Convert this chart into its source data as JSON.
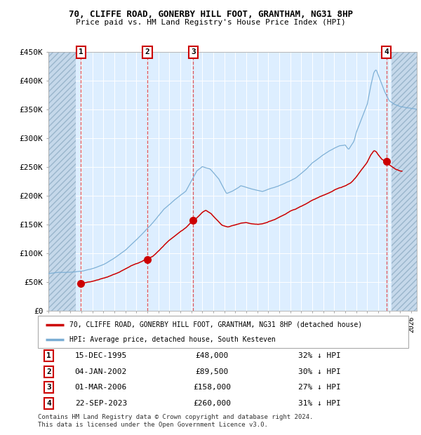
{
  "title1": "70, CLIFFE ROAD, GONERBY HILL FOOT, GRANTHAM, NG31 8HP",
  "title2": "Price paid vs. HM Land Registry's House Price Index (HPI)",
  "red_line_color": "#cc0000",
  "blue_line_color": "#7aadd4",
  "sale_dates_num": [
    1995.96,
    2002.01,
    2006.17,
    2023.73
  ],
  "sale_prices": [
    48000,
    89500,
    158000,
    260000
  ],
  "sale_labels": [
    "1",
    "2",
    "3",
    "4"
  ],
  "legend_red": "70, CLIFFE ROAD, GONERBY HILL FOOT, GRANTHAM, NG31 8HP (detached house)",
  "legend_blue": "HPI: Average price, detached house, South Kesteven",
  "table_rows": [
    [
      "1",
      "15-DEC-1995",
      "£48,000",
      "32% ↓ HPI"
    ],
    [
      "2",
      "04-JAN-2002",
      "£89,500",
      "30% ↓ HPI"
    ],
    [
      "3",
      "01-MAR-2006",
      "£158,000",
      "27% ↓ HPI"
    ],
    [
      "4",
      "22-SEP-2023",
      "£260,000",
      "31% ↓ HPI"
    ]
  ],
  "footnote": "Contains HM Land Registry data © Crown copyright and database right 2024.\nThis data is licensed under the Open Government Licence v3.0.",
  "ylim": [
    0,
    450000
  ],
  "yticks": [
    0,
    50000,
    100000,
    150000,
    200000,
    250000,
    300000,
    350000,
    400000,
    450000
  ],
  "ytick_labels": [
    "£0",
    "£50K",
    "£100K",
    "£150K",
    "£200K",
    "£250K",
    "£300K",
    "£350K",
    "£400K",
    "£450K"
  ],
  "xlim_start": 1993.0,
  "xlim_end": 2026.5,
  "hatch_left_end": 1995.5,
  "hatch_right_start": 2024.2,
  "plot_bg": "#ddeeff"
}
